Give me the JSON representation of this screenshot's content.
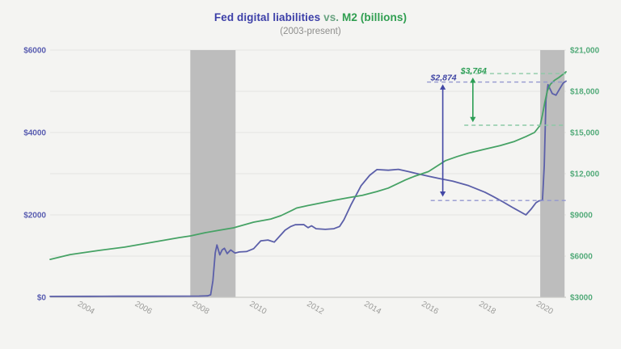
{
  "header": {
    "title_fed": "Fed digital liabilities",
    "title_vs": "vs.",
    "title_m2": "M2 (billions)",
    "subtitle": "(2003-present)"
  },
  "colors": {
    "background": "#f4f4f2",
    "title_fed": "#3c3fa8",
    "title_vs": "#69a381",
    "title_m2": "#2f9e50",
    "subtitle": "#8e8e8c",
    "fed_line": "#5b5fa9",
    "m2_line": "#46a265",
    "fed_dash": "#9397cf",
    "m2_dash": "#8cc9a6",
    "fed_annot": "#4247a5",
    "m2_annot": "#2c9e55",
    "left_tick": "#585cb0",
    "right_tick": "#52aa79",
    "x_tick": "#9b9b99",
    "grid": "#e5e5e3",
    "baseline": "#c9c9c7",
    "band": "#bdbdbd"
  },
  "chart_data": {
    "type": "line",
    "title": "Fed digital liabilities vs. M2 (billions)",
    "subtitle": "(2003-present)",
    "legend": "none (series identified by title colors)",
    "grid": "horizontal light gray lines every 1000 left-axis units",
    "x_domain": [
      2002.6,
      2020.6
    ],
    "x_ticks": [
      2004,
      2006,
      2008,
      2010,
      2012,
      2014,
      2016,
      2018,
      2020
    ],
    "left_axis": {
      "series": "Fed digital liabilities",
      "range": [
        0,
        6000
      ],
      "ticks": [
        {
          "v": 0,
          "label": "$0"
        },
        {
          "v": 2000,
          "label": "$2000"
        },
        {
          "v": 4000,
          "label": "$4000"
        },
        {
          "v": 6000,
          "label": "$6000"
        }
      ]
    },
    "right_axis": {
      "series": "M2",
      "range": [
        3000,
        21000
      ],
      "ticks": [
        {
          "v": 3000,
          "label": "$3000"
        },
        {
          "v": 6000,
          "label": "$6000"
        },
        {
          "v": 9000,
          "label": "$9000"
        },
        {
          "v": 12000,
          "label": "$12,000"
        },
        {
          "v": 15000,
          "label": "$15,000"
        },
        {
          "v": 18000,
          "label": "$18,000"
        },
        {
          "v": 21000,
          "label": "$21,000"
        }
      ]
    },
    "gridline_values_left": [
      0,
      1000,
      2000,
      3000,
      4000,
      5000,
      6000
    ],
    "recession_bands": [
      {
        "from": 2007.49,
        "to": 2009.07
      },
      {
        "from": 2019.7,
        "to": 2020.55
      }
    ],
    "series": [
      {
        "name": "Fed digital liabilities",
        "axis": "left",
        "color_key": "fed_line",
        "points": [
          [
            2002.6,
            22
          ],
          [
            2004,
            24
          ],
          [
            2005,
            25
          ],
          [
            2006,
            26
          ],
          [
            2007,
            28
          ],
          [
            2007.8,
            30
          ],
          [
            2008.1,
            35
          ],
          [
            2008.2,
            60
          ],
          [
            2008.28,
            400
          ],
          [
            2008.36,
            1080
          ],
          [
            2008.42,
            1270
          ],
          [
            2008.52,
            1030
          ],
          [
            2008.6,
            1150
          ],
          [
            2008.68,
            1190
          ],
          [
            2008.78,
            1060
          ],
          [
            2008.9,
            1150
          ],
          [
            2009.05,
            1075
          ],
          [
            2009.2,
            1100
          ],
          [
            2009.45,
            1110
          ],
          [
            2009.7,
            1180
          ],
          [
            2009.95,
            1370
          ],
          [
            2010.2,
            1390
          ],
          [
            2010.42,
            1340
          ],
          [
            2010.55,
            1440
          ],
          [
            2010.8,
            1630
          ],
          [
            2011.0,
            1720
          ],
          [
            2011.15,
            1760
          ],
          [
            2011.45,
            1765
          ],
          [
            2011.6,
            1690
          ],
          [
            2011.72,
            1735
          ],
          [
            2011.88,
            1665
          ],
          [
            2012.2,
            1650
          ],
          [
            2012.5,
            1665
          ],
          [
            2012.7,
            1720
          ],
          [
            2012.85,
            1880
          ],
          [
            2013.1,
            2250
          ],
          [
            2013.45,
            2710
          ],
          [
            2013.75,
            2960
          ],
          [
            2014.0,
            3100
          ],
          [
            2014.4,
            3085
          ],
          [
            2014.75,
            3105
          ],
          [
            2015.1,
            3050
          ],
          [
            2015.35,
            3010
          ],
          [
            2015.8,
            2940
          ],
          [
            2016.2,
            2880
          ],
          [
            2016.65,
            2820
          ],
          [
            2017.2,
            2710
          ],
          [
            2017.77,
            2550
          ],
          [
            2018.05,
            2450
          ],
          [
            2018.35,
            2335
          ],
          [
            2018.75,
            2175
          ],
          [
            2019.2,
            2000
          ],
          [
            2019.38,
            2140
          ],
          [
            2019.55,
            2295
          ],
          [
            2019.65,
            2340
          ],
          [
            2019.78,
            2360
          ],
          [
            2019.84,
            3200
          ],
          [
            2019.9,
            4800
          ],
          [
            2019.97,
            5160
          ],
          [
            2020.12,
            4945
          ],
          [
            2020.25,
            4905
          ],
          [
            2020.38,
            5060
          ],
          [
            2020.5,
            5200
          ],
          [
            2020.6,
            5245
          ]
        ]
      },
      {
        "name": "M2",
        "axis": "right",
        "color_key": "m2_line",
        "points": [
          [
            2002.6,
            5760
          ],
          [
            2003.3,
            6110
          ],
          [
            2004.3,
            6410
          ],
          [
            2005.2,
            6650
          ],
          [
            2006.15,
            7000
          ],
          [
            2007.1,
            7350
          ],
          [
            2007.5,
            7470
          ],
          [
            2008.0,
            7700
          ],
          [
            2008.5,
            7880
          ],
          [
            2009.0,
            8060
          ],
          [
            2009.7,
            8470
          ],
          [
            2010.3,
            8700
          ],
          [
            2010.65,
            8940
          ],
          [
            2011.05,
            9340
          ],
          [
            2011.2,
            9500
          ],
          [
            2011.6,
            9680
          ],
          [
            2012.5,
            10060
          ],
          [
            2013.0,
            10250
          ],
          [
            2013.5,
            10430
          ],
          [
            2014.0,
            10700
          ],
          [
            2014.4,
            10950
          ],
          [
            2015.0,
            11550
          ],
          [
            2015.3,
            11800
          ],
          [
            2015.8,
            12150
          ],
          [
            2016.4,
            12950
          ],
          [
            2016.8,
            13250
          ],
          [
            2017.2,
            13500
          ],
          [
            2017.8,
            13800
          ],
          [
            2018.3,
            14050
          ],
          [
            2018.8,
            14350
          ],
          [
            2019.2,
            14700
          ],
          [
            2019.5,
            15000
          ],
          [
            2019.7,
            15529
          ],
          [
            2019.78,
            16300
          ],
          [
            2019.86,
            17200
          ],
          [
            2019.95,
            18050
          ],
          [
            2020.05,
            18500
          ],
          [
            2020.2,
            18800
          ],
          [
            2020.35,
            19000
          ],
          [
            2020.5,
            19250
          ],
          [
            2020.6,
            19420
          ]
        ]
      }
    ],
    "ref_lines": [
      {
        "series": "fed",
        "axis": "left",
        "value": 5224,
        "from": 2015.75,
        "to": 2020.6,
        "color_key": "fed_dash"
      },
      {
        "series": "fed",
        "axis": "left",
        "value": 2350,
        "from": 2015.88,
        "to": 2020.6,
        "color_key": "fed_dash"
      },
      {
        "series": "m2",
        "axis": "right",
        "value": 19293,
        "from": 2016.93,
        "to": 2020.6,
        "color_key": "m2_dash"
      },
      {
        "series": "m2",
        "axis": "right",
        "value": 15529,
        "from": 2017.05,
        "to": 2020.6,
        "color_key": "m2_dash"
      }
    ],
    "annotations": [
      {
        "text": "$2,874",
        "series": "fed",
        "axis": "left",
        "arrow_x": 2016.3,
        "from": 2440,
        "to": 5170,
        "color_key": "fed_annot"
      },
      {
        "text": "$3,764",
        "series": "m2",
        "axis": "right",
        "arrow_x": 2017.35,
        "from": 15750,
        "to": 19000,
        "color_key": "m2_annot"
      }
    ]
  }
}
